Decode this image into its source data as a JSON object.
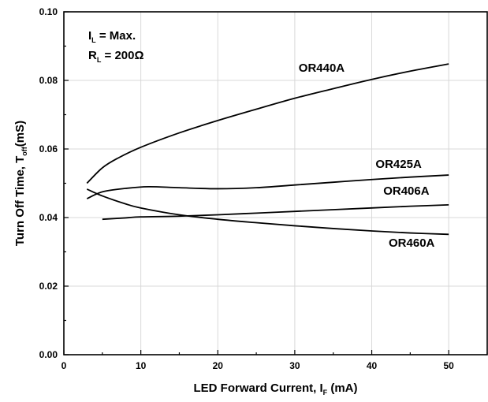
{
  "chart_data": {
    "type": "line",
    "title": "",
    "xlabel": {
      "main": "LED Forward Current, I",
      "sub": "F",
      "unit": " (mA)"
    },
    "ylabel": {
      "main": "Turn Off Time, T",
      "sub": "off",
      "unit": "(mS)"
    },
    "xlim": [
      0,
      55
    ],
    "ylim": [
      0,
      0.1
    ],
    "xticks": [
      0,
      10,
      20,
      30,
      40,
      50
    ],
    "xtick_labels": [
      "0",
      "10",
      "20",
      "30",
      "40",
      "50"
    ],
    "yticks": [
      0,
      0.02,
      0.04,
      0.06,
      0.08,
      0.1
    ],
    "ytick_labels": [
      "0.00",
      "0.02",
      "0.04",
      "0.06",
      "0.08",
      "0.10"
    ],
    "grid": true,
    "annotations": [
      {
        "main": "I",
        "sub": "L",
        "rest": " = Max."
      },
      {
        "main": "R",
        "sub": "L",
        "rest": " = 200Ω"
      }
    ],
    "series": [
      {
        "name": "OR440A",
        "x": [
          3,
          5,
          7,
          10,
          15,
          20,
          25,
          30,
          35,
          40,
          45,
          50
        ],
        "y": [
          0.05,
          0.0545,
          0.0573,
          0.0605,
          0.0647,
          0.0683,
          0.0716,
          0.0748,
          0.0776,
          0.0803,
          0.0827,
          0.0848
        ]
      },
      {
        "name": "OR425A",
        "x": [
          3,
          5,
          8,
          11,
          15,
          20,
          25,
          30,
          35,
          40,
          45,
          50
        ],
        "y": [
          0.0455,
          0.0475,
          0.0485,
          0.049,
          0.0487,
          0.0484,
          0.0487,
          0.0495,
          0.0503,
          0.0511,
          0.0518,
          0.0524
        ]
      },
      {
        "name": "OR406A",
        "x": [
          5,
          8,
          10,
          15,
          20,
          25,
          30,
          35,
          40,
          45,
          50
        ],
        "y": [
          0.0395,
          0.0399,
          0.0402,
          0.0404,
          0.0408,
          0.0413,
          0.0418,
          0.0423,
          0.0428,
          0.0433,
          0.0437
        ]
      },
      {
        "name": "OR460A",
        "x": [
          3,
          5,
          8,
          10,
          15,
          20,
          25,
          30,
          35,
          40,
          45,
          50
        ],
        "y": [
          0.0483,
          0.0463,
          0.044,
          0.0428,
          0.0408,
          0.0395,
          0.0385,
          0.0376,
          0.0368,
          0.0361,
          0.0355,
          0.0351
        ]
      }
    ],
    "series_labels": [
      {
        "name": "OR440A",
        "anchor_x": 30.5,
        "anchor_y": 0.0825
      },
      {
        "name": "OR425A",
        "anchor_x": 40.5,
        "anchor_y": 0.0545
      },
      {
        "name": "OR406A",
        "anchor_x": 41.5,
        "anchor_y": 0.0467
      },
      {
        "name": "OR460A",
        "anchor_x": 42.2,
        "anchor_y": 0.0315
      }
    ]
  }
}
